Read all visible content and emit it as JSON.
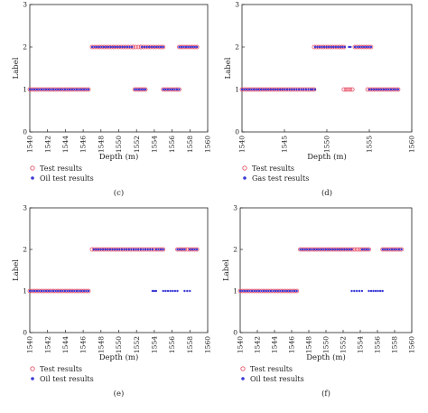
{
  "chart_data": [
    {
      "type": "scatter",
      "panel_label": "(c)",
      "xlabel": "Depth (m)",
      "ylabel": "Label",
      "xlim": [
        1540,
        1560
      ],
      "ylim": [
        0,
        3
      ],
      "xticks": [
        1540,
        1542,
        1544,
        1546,
        1548,
        1550,
        1552,
        1554,
        1556,
        1558,
        1560
      ],
      "xtick_labels": [
        "1540",
        "1542",
        "1544",
        "1546",
        "1548",
        "1550",
        "1552",
        "1554",
        "1556",
        "1558",
        "1560"
      ],
      "yticks": [
        0,
        1,
        2,
        3
      ],
      "ytick_labels": [
        "0",
        "1",
        "2",
        "3"
      ],
      "legend": "bottom-left",
      "series": [
        {
          "name": "Test results",
          "marker": "open-circle",
          "color": "#e8556b",
          "segments": [
            {
              "x": [
                1540,
                1546.6
              ],
              "y": 1
            },
            {
              "x": [
                1547.0,
                1551.6
              ],
              "y": 2
            },
            {
              "x": [
                1551.6,
                1552.5
              ],
              "y": 2
            },
            {
              "x": [
                1552.5,
                1555.0
              ],
              "y": 2
            },
            {
              "x": [
                1556.8,
                1558.8
              ],
              "y": 2
            },
            {
              "x": [
                1551.8,
                1553.0
              ],
              "y": 1
            },
            {
              "x": [
                1555.0,
                1556.8
              ],
              "y": 1
            }
          ]
        },
        {
          "name": "Oil test results",
          "marker": "filled-dot",
          "color": "#3a3ad6",
          "segments": [
            {
              "x": [
                1540,
                1546.6
              ],
              "y": 1
            },
            {
              "x": [
                1547.0,
                1551.5
              ],
              "y": 2
            },
            {
              "x": [
                1552.6,
                1555.0
              ],
              "y": 2
            },
            {
              "x": [
                1556.8,
                1558.8
              ],
              "y": 2
            },
            {
              "x": [
                1551.8,
                1553.0
              ],
              "y": 1
            },
            {
              "x": [
                1555.0,
                1556.8
              ],
              "y": 1
            }
          ]
        }
      ]
    },
    {
      "type": "scatter",
      "panel_label": "(d)",
      "xlabel": "Depth (m)",
      "ylabel": "Label",
      "xlim": [
        1540,
        1560
      ],
      "ylim": [
        0,
        3
      ],
      "xticks": [
        1540,
        1545,
        1550,
        1555,
        1560
      ],
      "xtick_labels": [
        "1540",
        "1545",
        "1550",
        "1555",
        "1560"
      ],
      "yticks": [
        0,
        1,
        2,
        3
      ],
      "ytick_labels": [
        "0",
        "1",
        "2",
        "3"
      ],
      "legend": "bottom-left",
      "series": [
        {
          "name": "Test results",
          "marker": "open-circle",
          "color": "#e8556b",
          "segments": [
            {
              "x": [
                1540,
                1548.5
              ],
              "y": 1
            },
            {
              "x": [
                1548.5,
                1552.0
              ],
              "y": 2
            },
            {
              "x": [
                1553.3,
                1555.2
              ],
              "y": 2
            },
            {
              "x": [
                1552.0,
                1553.0
              ],
              "y": 1
            },
            {
              "x": [
                1554.8,
                1558.4
              ],
              "y": 1
            }
          ]
        },
        {
          "name": "Gas test results",
          "marker": "filled-dot",
          "color": "#3a3ad6",
          "segments": [
            {
              "x": [
                1540,
                1548.1
              ],
              "y": 1
            },
            {
              "x": [
                1548.3,
                1548.6
              ],
              "y": 1
            },
            {
              "x": [
                1548.6,
                1552.1
              ],
              "y": 2
            },
            {
              "x": [
                1553.3,
                1555.2
              ],
              "y": 2
            },
            {
              "x": [
                1552.6,
                1552.8
              ],
              "y": 2
            },
            {
              "x": [
                1555.0,
                1558.4
              ],
              "y": 1
            }
          ]
        }
      ]
    },
    {
      "type": "scatter",
      "panel_label": "(e)",
      "xlabel": "Depth (m)",
      "ylabel": "Label",
      "xlim": [
        1540,
        1560
      ],
      "ylim": [
        0,
        3
      ],
      "xticks": [
        1540,
        1542,
        1544,
        1546,
        1548,
        1550,
        1552,
        1554,
        1556,
        1558,
        1560
      ],
      "xtick_labels": [
        "1540",
        "1542",
        "1544",
        "1546",
        "1548",
        "1550",
        "1552",
        "1554",
        "1556",
        "1558",
        "1560"
      ],
      "yticks": [
        0,
        1,
        2,
        3
      ],
      "ytick_labels": [
        "0",
        "1",
        "2",
        "3"
      ],
      "legend": "bottom-left",
      "series": [
        {
          "name": "Test results",
          "marker": "open-circle",
          "color": "#e8556b",
          "segments": [
            {
              "x": [
                1540,
                1546.6
              ],
              "y": 1
            },
            {
              "x": [
                1547.0,
                1555.0
              ],
              "y": 2
            },
            {
              "x": [
                1556.6,
                1558.8
              ],
              "y": 2
            }
          ]
        },
        {
          "name": "Oil test results",
          "marker": "filled-dot",
          "color": "#3a3ad6",
          "segments": [
            {
              "x": [
                1540,
                1546.6
              ],
              "y": 1
            },
            {
              "x": [
                1547.2,
                1553.8
              ],
              "y": 2
            },
            {
              "x": [
                1554.2,
                1555.0
              ],
              "y": 2
            },
            {
              "x": [
                1556.6,
                1557.4
              ],
              "y": 2
            },
            {
              "x": [
                1558.0,
                1558.8
              ],
              "y": 2
            },
            {
              "x": [
                1553.8,
                1554.2
              ],
              "y": 1
            },
            {
              "x": [
                1555.0,
                1556.6
              ],
              "y": 1
            },
            {
              "x": [
                1557.4,
                1558.0
              ],
              "y": 1
            }
          ]
        }
      ]
    },
    {
      "type": "scatter",
      "panel_label": "(f)",
      "xlabel": "Depth (m)",
      "ylabel": "Label",
      "xlim": [
        1540,
        1560
      ],
      "ylim": [
        0,
        3
      ],
      "xticks": [
        1540,
        1542,
        1544,
        1546,
        1548,
        1550,
        1552,
        1554,
        1556,
        1558,
        1560
      ],
      "xtick_labels": [
        "1540",
        "1542",
        "1544",
        "1546",
        "1548",
        "1550",
        "1552",
        "1554",
        "1556",
        "1558",
        "1560"
      ],
      "yticks": [
        0,
        1,
        2,
        3
      ],
      "ytick_labels": [
        "0",
        "1",
        "2",
        "3"
      ],
      "legend": "bottom-left",
      "series": [
        {
          "name": "Test results",
          "marker": "open-circle",
          "color": "#e8556b",
          "segments": [
            {
              "x": [
                1540,
                1546.6
              ],
              "y": 1
            },
            {
              "x": [
                1547.0,
                1555.0
              ],
              "y": 2
            },
            {
              "x": [
                1556.6,
                1558.8
              ],
              "y": 2
            }
          ]
        },
        {
          "name": "Oil test results",
          "marker": "filled-dot",
          "color": "#3a3ad6",
          "segments": [
            {
              "x": [
                1540,
                1546.6
              ],
              "y": 1
            },
            {
              "x": [
                1547.0,
                1553.0
              ],
              "y": 2
            },
            {
              "x": [
                1554.2,
                1555.0
              ],
              "y": 2
            },
            {
              "x": [
                1556.6,
                1558.8
              ],
              "y": 2
            },
            {
              "x": [
                1553.0,
                1554.2
              ],
              "y": 1
            },
            {
              "x": [
                1555.0,
                1556.6
              ],
              "y": 1
            }
          ]
        }
      ]
    }
  ]
}
